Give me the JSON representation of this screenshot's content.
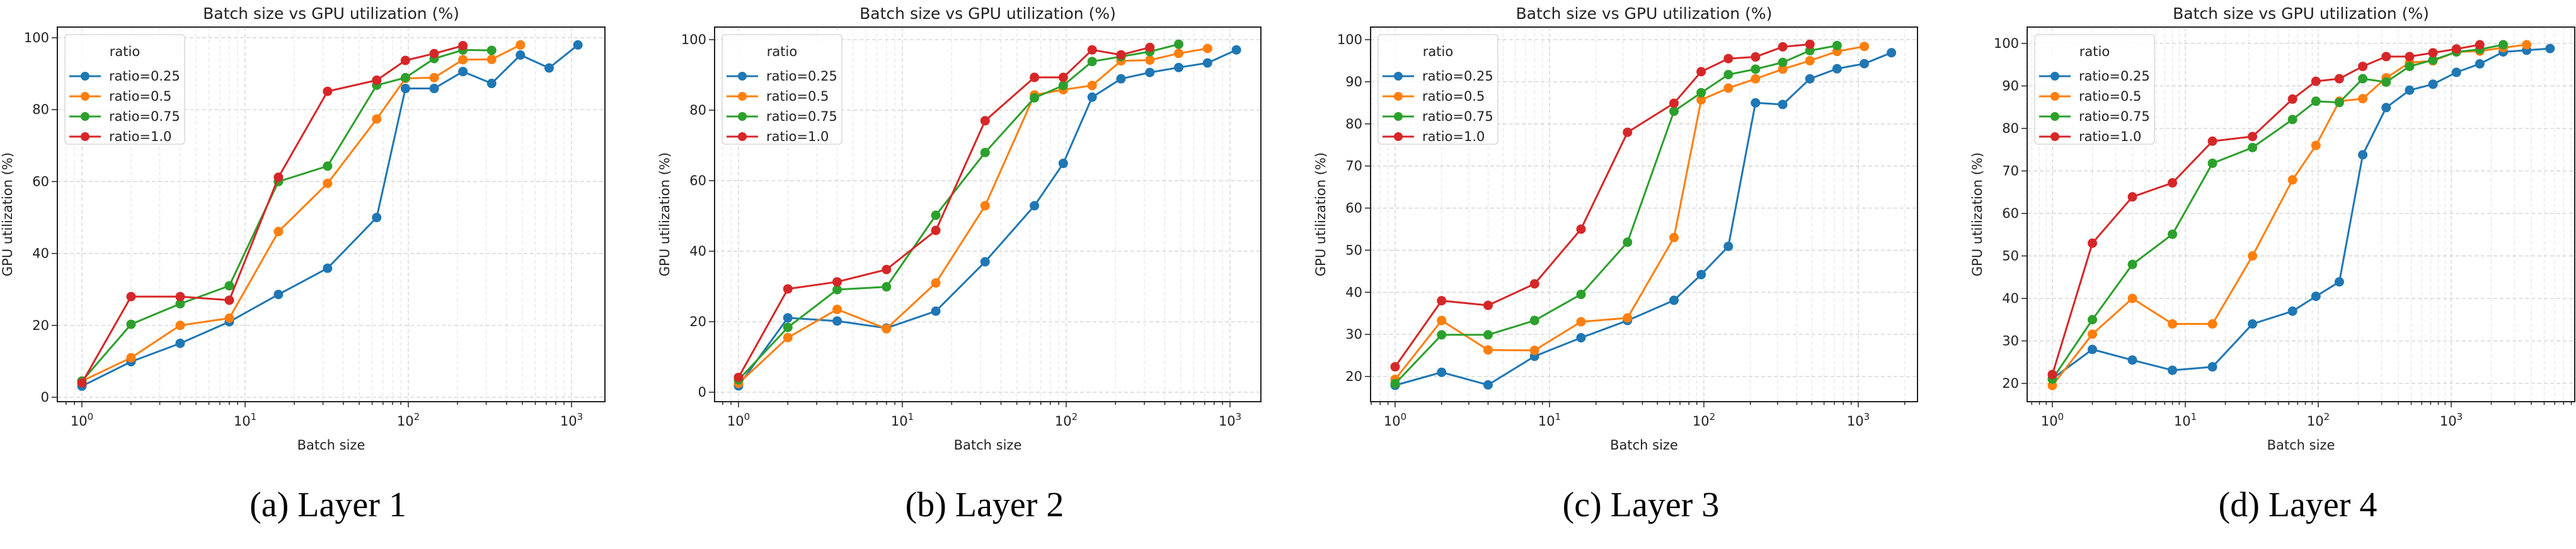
{
  "figure": {
    "captions": [
      "(a) Layer 1",
      "(b) Layer 2",
      "(c) Layer 3",
      "(d) Layer 4"
    ]
  },
  "legend": {
    "title": "ratio",
    "entries": [
      "ratio=0.25",
      "ratio=0.5",
      "ratio=0.75",
      "ratio=1.0"
    ],
    "colors": [
      "#1f77b4",
      "#ff7f0e",
      "#2ca02c",
      "#d62728"
    ]
  },
  "chart_data": [
    {
      "type": "line",
      "title": "Batch size vs GPU utilization (%)",
      "caption": "(a) Layer 1",
      "xlabel": "Batch size",
      "ylabel": "GPU utilization (%)",
      "xscale": "log",
      "xticks": [
        "10^0",
        "10^1",
        "10^2",
        "10^3"
      ],
      "yticks": [
        0,
        20,
        40,
        60,
        80,
        100
      ],
      "ylim": [
        -1.3,
        103.2
      ],
      "xlim": [
        0.7,
        1600
      ],
      "grid": true,
      "legend_position": "upper-left",
      "series": [
        {
          "name": "ratio=0.25",
          "x": [
            1,
            2,
            4,
            8,
            16,
            32,
            64,
            96,
            144,
            216,
            324,
            486,
            729,
            1094
          ],
          "y": [
            3.1,
            9.9,
            15,
            21,
            28.6,
            35.9,
            50,
            85.9,
            85.9,
            90.6,
            87.3,
            95.2,
            91.6,
            98
          ]
        },
        {
          "name": "ratio=0.5",
          "x": [
            1,
            2,
            4,
            8,
            16,
            32,
            64,
            96,
            144,
            216,
            324,
            486
          ],
          "y": [
            4.5,
            11,
            20,
            22,
            46.1,
            59.5,
            77.4,
            88.7,
            88.9,
            93.9,
            94,
            98
          ]
        },
        {
          "name": "ratio=0.75",
          "x": [
            1,
            2,
            4,
            8,
            16,
            32,
            64,
            96,
            144,
            216,
            324
          ],
          "y": [
            4.5,
            20.3,
            26,
            31,
            60,
            64.3,
            86.8,
            88.9,
            94.2,
            96.6,
            96.5
          ]
        },
        {
          "name": "ratio=1.0",
          "x": [
            1,
            2,
            4,
            8,
            16,
            32,
            64,
            96,
            144,
            216
          ],
          "y": [
            4,
            28,
            28,
            27,
            61.2,
            85.1,
            88.2,
            93.7,
            95.6,
            97.8
          ]
        }
      ]
    },
    {
      "type": "line",
      "title": "Batch size vs GPU utilization (%)",
      "caption": "(b) Layer 2",
      "xlabel": "Batch size",
      "ylabel": "GPU utilization (%)",
      "xscale": "log",
      "xticks": [
        "10^0",
        "10^1",
        "10^2",
        "10^3"
      ],
      "yticks": [
        0,
        20,
        40,
        60,
        80,
        100
      ],
      "ylim": [
        -1.2,
        103.6
      ],
      "xlim": [
        0.7,
        1600
      ],
      "grid": true,
      "legend_position": "upper-left",
      "series": [
        {
          "name": "ratio=0.25",
          "x": [
            1,
            2,
            4,
            8,
            16,
            32,
            64,
            96,
            144,
            216,
            324,
            486,
            729,
            1094
          ],
          "y": [
            1.8,
            21.1,
            20.2,
            18.2,
            23,
            37,
            52.9,
            64.9,
            83.7,
            88.9,
            90.7,
            92.1,
            93.4,
            97.1
          ]
        },
        {
          "name": "ratio=0.5",
          "x": [
            1,
            2,
            4,
            8,
            16,
            32,
            64,
            96,
            144,
            216,
            324,
            486,
            729
          ],
          "y": [
            2.5,
            15.5,
            23.5,
            18,
            31,
            52.9,
            84.3,
            85.8,
            87,
            94,
            94.2,
            96.1,
            97.5
          ]
        },
        {
          "name": "ratio=0.75",
          "x": [
            1,
            2,
            4,
            8,
            16,
            32,
            64,
            96,
            144,
            216,
            324,
            486
          ],
          "y": [
            3.5,
            18.4,
            29.1,
            29.9,
            50.2,
            68,
            83.5,
            87,
            93.8,
            95.2,
            96.6,
            98.7
          ]
        },
        {
          "name": "ratio=1.0",
          "x": [
            1,
            2,
            4,
            8,
            16,
            32,
            64,
            96,
            144,
            216,
            324
          ],
          "y": [
            4.2,
            29.3,
            31.3,
            34.8,
            45.9,
            77,
            89.3,
            89.3,
            97.1,
            95.7,
            97.8
          ]
        }
      ]
    },
    {
      "type": "line",
      "title": "Batch size vs GPU utilization (%)",
      "caption": "(c) Layer 3",
      "xlabel": "Batch size",
      "ylabel": "GPU utilization (%)",
      "xscale": "log",
      "xticks": [
        "10^0",
        "10^1",
        "10^2",
        "10^3"
      ],
      "yticks": [
        20,
        30,
        40,
        50,
        60,
        70,
        80,
        90,
        100
      ],
      "ylim": [
        14.2,
        103.0
      ],
      "xlim": [
        0.7,
        2500
      ],
      "grid": true,
      "legend_position": "upper-left",
      "series": [
        {
          "name": "ratio=0.25",
          "x": [
            1,
            2,
            4,
            8,
            16,
            32,
            64,
            96,
            144,
            216,
            324,
            486,
            729,
            1094,
            1640
          ],
          "y": [
            17.9,
            21,
            18,
            24.8,
            29.2,
            33.3,
            38.1,
            44.2,
            50.9,
            85,
            84.6,
            90.7,
            93.1,
            94.3,
            96.9
          ]
        },
        {
          "name": "ratio=0.5",
          "x": [
            1,
            2,
            4,
            8,
            16,
            32,
            64,
            96,
            144,
            216,
            324,
            486,
            729,
            1094
          ],
          "y": [
            19.3,
            33.3,
            26.3,
            26.2,
            33,
            33.9,
            53,
            85.7,
            88.5,
            90.7,
            93,
            95,
            97.2,
            98.4
          ]
        },
        {
          "name": "ratio=0.75",
          "x": [
            1,
            2,
            4,
            8,
            16,
            32,
            64,
            96,
            144,
            216,
            324,
            486,
            729
          ],
          "y": [
            18.3,
            29.9,
            29.9,
            33.3,
            39.5,
            51.9,
            83,
            87.4,
            91.7,
            93,
            94.6,
            97.4,
            98.6
          ]
        },
        {
          "name": "ratio=1.0",
          "x": [
            1,
            2,
            4,
            8,
            16,
            32,
            64,
            96,
            144,
            216,
            324,
            486
          ],
          "y": [
            22.3,
            38,
            36.9,
            42,
            55,
            78,
            84.9,
            92.4,
            95.5,
            95.9,
            98.3,
            98.9
          ]
        }
      ]
    },
    {
      "type": "line",
      "title": "Batch size vs GPU utilization (%)",
      "caption": "(d) Layer 4",
      "xlabel": "Batch size",
      "ylabel": "GPU utilization (%)",
      "xscale": "log",
      "xticks": [
        "10^0",
        "10^1",
        "10^2",
        "10^3"
      ],
      "yticks": [
        20,
        30,
        40,
        50,
        60,
        70,
        80,
        90,
        100
      ],
      "ylim": [
        15.1,
        104.2
      ],
      "xlim": [
        0.65,
        8500
      ],
      "grid": true,
      "legend_position": "upper-left",
      "series": [
        {
          "name": "ratio=0.25",
          "x": [
            1,
            2,
            4,
            8,
            16,
            32,
            64,
            96,
            144,
            216,
            324,
            486,
            729,
            1094,
            1640,
            2460,
            3690,
            5535
          ],
          "y": [
            21.1,
            28,
            25.5,
            23.1,
            23.9,
            34,
            37,
            40.5,
            43.9,
            73.8,
            84.9,
            89,
            90.4,
            93.2,
            95.2,
            98,
            98.4,
            98.8
          ]
        },
        {
          "name": "ratio=0.5",
          "x": [
            1,
            2,
            4,
            8,
            16,
            32,
            64,
            96,
            144,
            216,
            324,
            486,
            729,
            1094,
            1640,
            2460,
            3690
          ],
          "y": [
            19.5,
            31.6,
            40,
            34,
            34,
            50,
            67.9,
            76,
            86.4,
            87,
            91.9,
            95.5,
            95.9,
            98,
            98.2,
            99,
            99.7
          ]
        },
        {
          "name": "ratio=0.75",
          "x": [
            1,
            2,
            4,
            8,
            16,
            32,
            64,
            96,
            144,
            216,
            324,
            486,
            729,
            1094,
            1640,
            2460
          ],
          "y": [
            21,
            35,
            48,
            55.1,
            71.8,
            75.5,
            82.1,
            86.4,
            86.1,
            91.7,
            90.9,
            94.6,
            96.1,
            98,
            98.6,
            99.7
          ]
        },
        {
          "name": "ratio=1.0",
          "x": [
            1,
            2,
            4,
            8,
            16,
            32,
            64,
            96,
            144,
            216,
            324,
            486,
            729,
            1094,
            1640
          ],
          "y": [
            22.1,
            53,
            63.9,
            67.2,
            77,
            78.1,
            86.9,
            91.1,
            91.7,
            94.6,
            96.9,
            96.9,
            97.8,
            98.7,
            99.7
          ]
        }
      ]
    }
  ]
}
